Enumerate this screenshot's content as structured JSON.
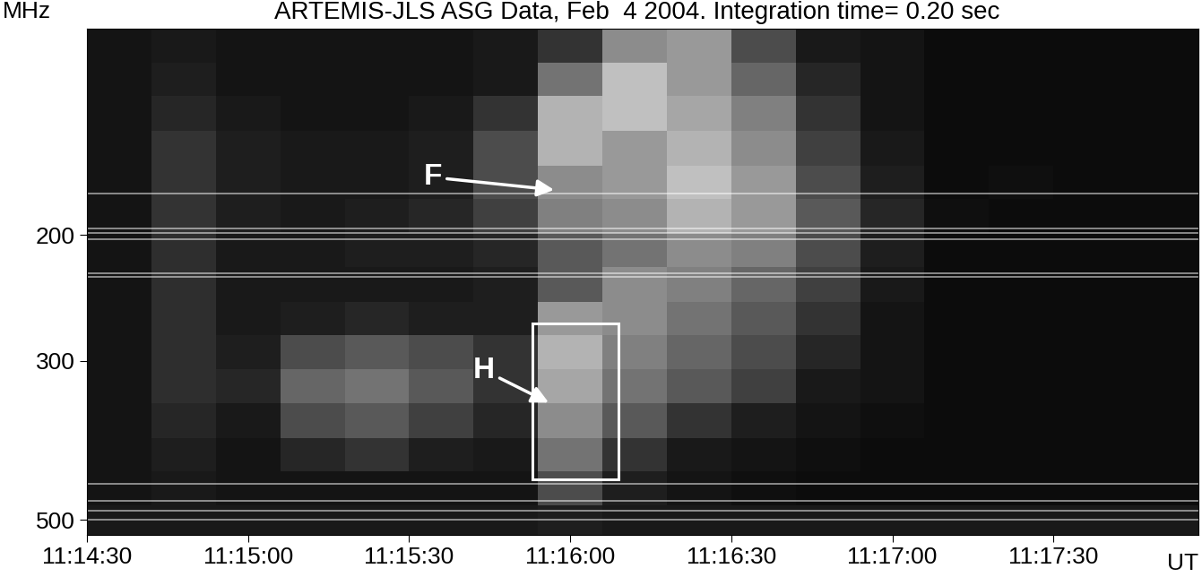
{
  "chart_data": {
    "type": "spectrogram",
    "title": "ARTEMIS-JLS ASG Data, Feb  4 2004. Integration time= 0.20 sec",
    "ylabel": "MHz",
    "xlabel": "UT",
    "log": "y",
    "color": "gray",
    "xlim": [
      40470,
      40677
    ],
    "xticks": [
      {
        "value": 40470,
        "label": "11:14:30"
      },
      {
        "value": 40500,
        "label": "11:15:00"
      },
      {
        "value": 40530,
        "label": "11:15:30"
      },
      {
        "value": 40560,
        "label": "11:16:00"
      },
      {
        "value": 40590,
        "label": "11:16:30"
      },
      {
        "value": 40620,
        "label": "11:17:00"
      },
      {
        "value": 40650,
        "label": "11:17:30"
      }
    ],
    "ylim": [
      525,
      103
    ],
    "yticks": [
      200,
      300,
      500
    ],
    "time_edges": [
      40470,
      40482,
      40494,
      40506,
      40518,
      40530,
      40542,
      40554,
      40566,
      40578,
      40590,
      40602,
      40614,
      40626,
      40638,
      40650,
      40662,
      40677
    ],
    "freq_edges": [
      103,
      115,
      128,
      143,
      160,
      178,
      199,
      222,
      248,
      276,
      308,
      344,
      384,
      428,
      477,
      525
    ],
    "cell_range": [
      0,
      1
    ],
    "cells": [
      [
        0.08,
        0.1,
        0.08,
        0.08,
        0.08,
        0.08,
        0.1,
        0.2,
        0.55,
        0.6,
        0.3,
        0.1,
        0.08,
        0.05,
        0.05,
        0.05,
        0.05
      ],
      [
        0.08,
        0.12,
        0.08,
        0.08,
        0.08,
        0.08,
        0.1,
        0.45,
        0.75,
        0.6,
        0.4,
        0.15,
        0.08,
        0.05,
        0.05,
        0.05,
        0.05
      ],
      [
        0.08,
        0.15,
        0.1,
        0.08,
        0.08,
        0.1,
        0.2,
        0.7,
        0.75,
        0.65,
        0.5,
        0.2,
        0.08,
        0.05,
        0.05,
        0.05,
        0.05
      ],
      [
        0.08,
        0.2,
        0.12,
        0.1,
        0.1,
        0.12,
        0.3,
        0.7,
        0.6,
        0.7,
        0.55,
        0.25,
        0.1,
        0.05,
        0.05,
        0.05,
        0.05
      ],
      [
        0.08,
        0.2,
        0.12,
        0.1,
        0.1,
        0.12,
        0.3,
        0.55,
        0.6,
        0.75,
        0.6,
        0.3,
        0.12,
        0.05,
        0.06,
        0.05,
        0.05
      ],
      [
        0.08,
        0.2,
        0.12,
        0.1,
        0.12,
        0.15,
        0.25,
        0.5,
        0.55,
        0.7,
        0.6,
        0.35,
        0.15,
        0.06,
        0.05,
        0.05,
        0.05
      ],
      [
        0.08,
        0.18,
        0.1,
        0.1,
        0.12,
        0.12,
        0.15,
        0.35,
        0.45,
        0.55,
        0.5,
        0.3,
        0.12,
        0.05,
        0.05,
        0.05,
        0.05
      ],
      [
        0.08,
        0.18,
        0.1,
        0.1,
        0.1,
        0.1,
        0.12,
        0.35,
        0.55,
        0.5,
        0.4,
        0.25,
        0.1,
        0.05,
        0.05,
        0.05,
        0.05
      ],
      [
        0.08,
        0.18,
        0.1,
        0.12,
        0.15,
        0.12,
        0.12,
        0.6,
        0.55,
        0.45,
        0.35,
        0.2,
        0.08,
        0.05,
        0.05,
        0.05,
        0.05
      ],
      [
        0.08,
        0.18,
        0.12,
        0.3,
        0.35,
        0.3,
        0.2,
        0.7,
        0.5,
        0.4,
        0.3,
        0.15,
        0.08,
        0.05,
        0.05,
        0.05,
        0.05
      ],
      [
        0.08,
        0.18,
        0.15,
        0.4,
        0.45,
        0.35,
        0.2,
        0.65,
        0.45,
        0.35,
        0.25,
        0.1,
        0.08,
        0.05,
        0.05,
        0.05,
        0.05
      ],
      [
        0.08,
        0.15,
        0.1,
        0.3,
        0.35,
        0.25,
        0.15,
        0.55,
        0.35,
        0.2,
        0.12,
        0.08,
        0.06,
        0.05,
        0.05,
        0.05,
        0.05
      ],
      [
        0.08,
        0.12,
        0.08,
        0.15,
        0.2,
        0.12,
        0.1,
        0.45,
        0.2,
        0.1,
        0.08,
        0.06,
        0.05,
        0.05,
        0.05,
        0.05,
        0.05
      ],
      [
        0.08,
        0.1,
        0.08,
        0.08,
        0.08,
        0.08,
        0.08,
        0.3,
        0.12,
        0.08,
        0.06,
        0.05,
        0.05,
        0.05,
        0.05,
        0.05,
        0.05
      ],
      [
        0.1,
        0.1,
        0.1,
        0.1,
        0.1,
        0.1,
        0.1,
        0.12,
        0.1,
        0.1,
        0.1,
        0.1,
        0.1,
        0.1,
        0.1,
        0.1,
        0.1
      ]
    ],
    "interference_mhz": [
      175,
      196,
      199,
      203,
      226,
      229,
      446,
      470,
      485,
      500
    ],
    "annotations": [
      {
        "text": "F",
        "x": 40557,
        "y": 173
      },
      {
        "text": "H",
        "x": 40556,
        "y": 343
      }
    ],
    "box": {
      "x": [
        40553,
        40569
      ],
      "y": [
        266,
        439
      ]
    }
  }
}
